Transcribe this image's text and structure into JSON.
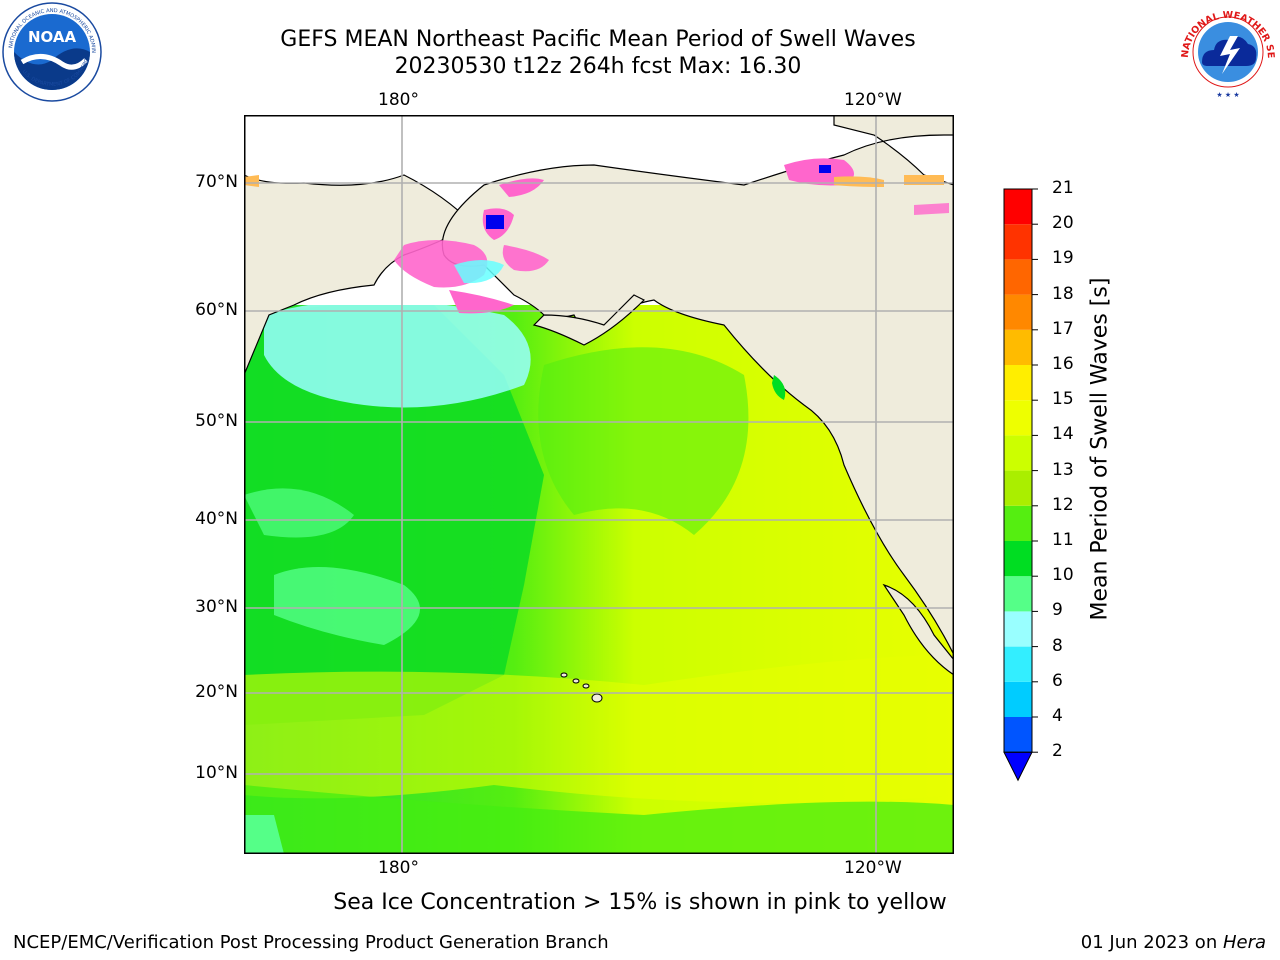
{
  "title": {
    "line1": "GEFS MEAN Northeast Pacific Mean Period of Swell Waves",
    "line2": "20230530 t12z 264h fcst   Max: 16.30"
  },
  "logos": {
    "noaa": {
      "icon": "noaa-logo",
      "text": "NOAA",
      "ring_text": "NATIONAL OCEANIC AND ATMOSPHERIC ADMINISTRATION · U.S. DEPARTMENT OF COMMERCE"
    },
    "nws": {
      "icon": "nws-logo",
      "ring_text": "NATIONAL WEATHER SERVICE"
    }
  },
  "map": {
    "lon_labels_top": [
      "180°",
      "120°W"
    ],
    "lon_labels_bottom": [
      "180°",
      "120°W"
    ],
    "lat_labels": [
      "70°N",
      "60°N",
      "50°N",
      "40°N",
      "30°N",
      "20°N",
      "10°N"
    ],
    "colors": {
      "land": "#efecdc",
      "ocean_white": "#ffffff",
      "grid": "#b0b0b0",
      "coast": "#000000"
    }
  },
  "colorbar": {
    "title": "Mean Period of Swell Waves [s]",
    "tick_labels": [
      "2",
      "4",
      "6",
      "8",
      "9",
      "10",
      "11",
      "12",
      "13",
      "14",
      "15",
      "16",
      "17",
      "18",
      "19",
      "20",
      "21"
    ],
    "colors": [
      "#0055ff",
      "#00ccff",
      "#33eeff",
      "#99ffff",
      "#55ff88",
      "#00dd22",
      "#55ee11",
      "#aaee00",
      "#ccff00",
      "#eeff00",
      "#ffee00",
      "#ffbb00",
      "#ff8800",
      "#ff6600",
      "#ff3300",
      "#ff0000"
    ],
    "under_color": "#0000ff"
  },
  "caption": "Sea Ice Concentration > 15% is shown in pink to yellow",
  "footer": {
    "left": "NCEP/EMC/Verification Post Processing Product Generation Branch",
    "right_prefix": "01 Jun 2023 on ",
    "right_host": "Hera"
  }
}
